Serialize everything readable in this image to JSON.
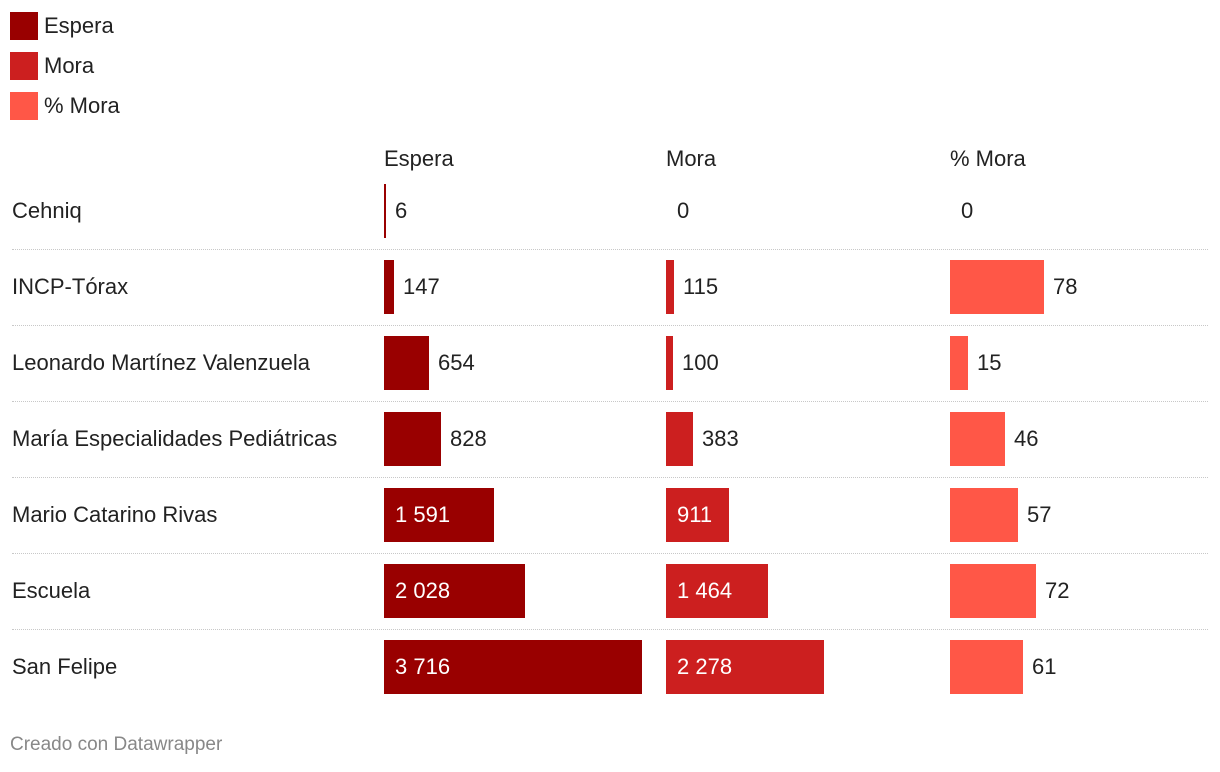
{
  "legend": [
    {
      "label": "Espera",
      "color": "#990000"
    },
    {
      "label": "Mora",
      "color": "#cc1f1f"
    },
    {
      "label": "% Mora",
      "color": "#ff5747"
    }
  ],
  "columns": [
    "Espera",
    "Mora",
    "% Mora"
  ],
  "footer": "Creado con Datawrapper",
  "chart_data": {
    "type": "bar",
    "title": "",
    "categories": [
      "Cehniq",
      "INCP-Tórax",
      "Leonardo Martínez Valenzuela",
      "María Especialidades Pediátricas",
      "Mario Catarino Rivas",
      "Escuela",
      "San Felipe"
    ],
    "series": [
      {
        "name": "Espera",
        "color": "#990000",
        "values": [
          6,
          147,
          654,
          828,
          1591,
          2028,
          3716
        ],
        "labels": [
          "6",
          "147",
          "654",
          "828",
          "1 591",
          "2 028",
          "3 716"
        ],
        "max": 3716
      },
      {
        "name": "Mora",
        "color": "#cc1f1f",
        "values": [
          0,
          115,
          100,
          383,
          911,
          1464,
          2278
        ],
        "labels": [
          "0",
          "115",
          "100",
          "383",
          "911",
          "1 464",
          "2 278"
        ],
        "max": 3716
      },
      {
        "name": "% Mora",
        "color": "#ff5747",
        "values": [
          0,
          78,
          15,
          46,
          57,
          72,
          61
        ],
        "labels": [
          "0",
          "78",
          "15",
          "46",
          "57",
          "72",
          "61"
        ],
        "max": 100
      }
    ]
  }
}
